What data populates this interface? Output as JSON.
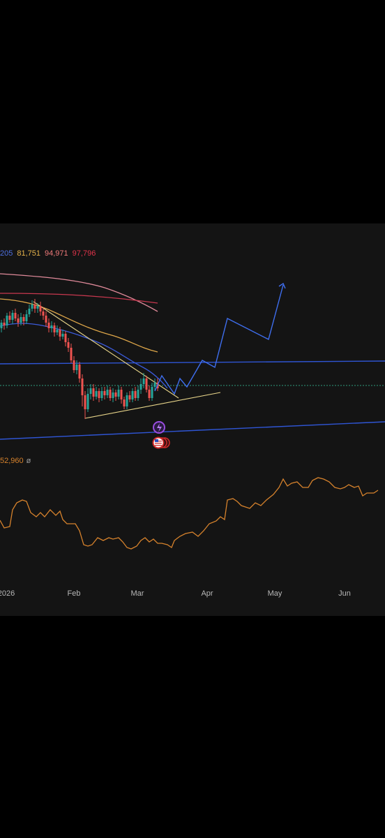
{
  "legend": {
    "values": [
      {
        "text": "205",
        "color": "#4d6fe0"
      },
      {
        "text": "81,751",
        "color": "#e6b34a"
      },
      {
        "text": "94,971",
        "color": "#f07a7a"
      },
      {
        "text": "97,796",
        "color": "#e0334a"
      }
    ]
  },
  "oscillator": {
    "value_text": "52,960",
    "zero_text": "ø",
    "color": "#d6822c"
  },
  "colors": {
    "background": "#000000",
    "panel": "#141414",
    "candle_up": "#26a69a",
    "candle_down": "#ef5350",
    "ma_blue": "#3b5bdb",
    "ma_orange": "#e0a84a",
    "ma_pink": "#e08a9a",
    "ma_red": "#c8384f",
    "channel": "#2f55d4",
    "trendline": "#e8d58a",
    "projection": "#3f6ff0",
    "price_dotted": "#2e9b7e"
  },
  "icons": [
    "lightning-event-icon",
    "us-flag-event-icon"
  ],
  "chart_data": {
    "type": "candlestick",
    "x_axis": {
      "labels": [
        "2026",
        "Feb",
        "Mar",
        "Apr",
        "May",
        "Jun"
      ]
    },
    "legend_values": [
      205,
      81751,
      94971,
      97796
    ],
    "oscillator_value": 52960,
    "projection_shape": "descending triangle breakout, then rally into May"
  }
}
